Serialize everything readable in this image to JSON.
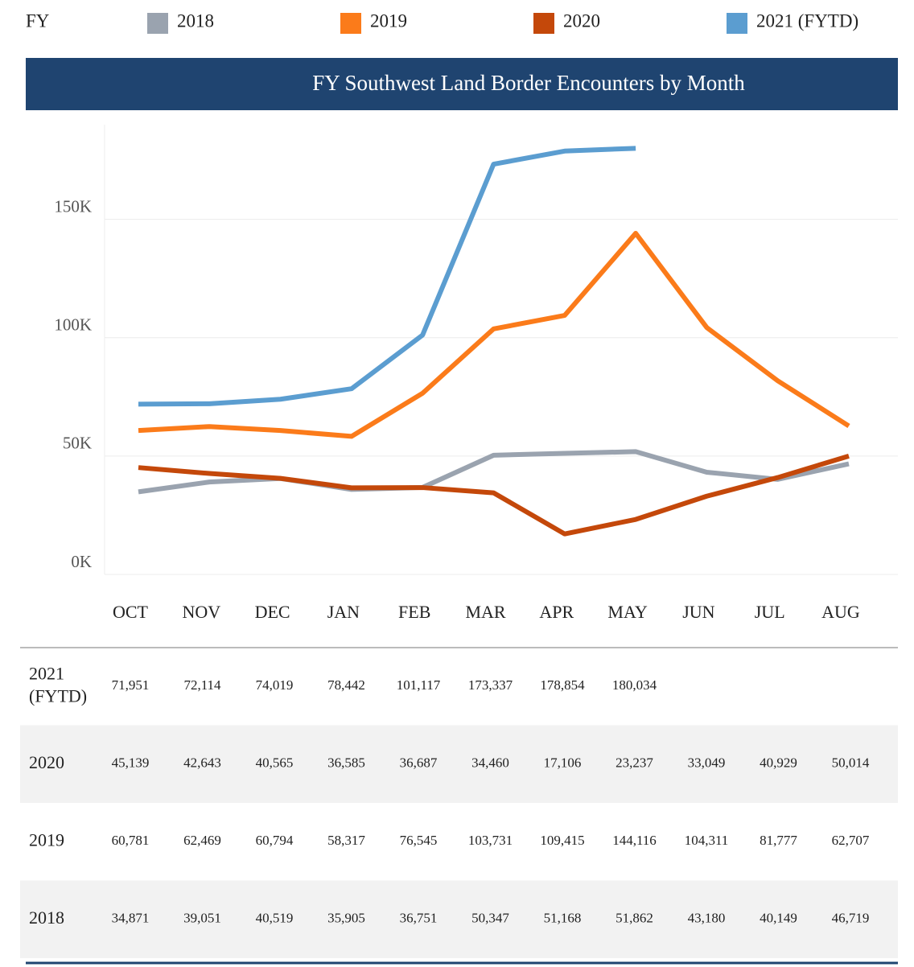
{
  "chart_data": {
    "type": "line",
    "title": "FY Southwest Land Border Encounters by Month",
    "legend_title": "FY",
    "categories": [
      "OCT",
      "NOV",
      "DEC",
      "JAN",
      "FEB",
      "MAR",
      "APR",
      "MAY",
      "JUN",
      "JUL",
      "AUG"
    ],
    "ylim": [
      0,
      190000
    ],
    "yticks": [
      {
        "value": 0,
        "label": "0K"
      },
      {
        "value": 50000,
        "label": "50K"
      },
      {
        "value": 100000,
        "label": "100K"
      },
      {
        "value": 150000,
        "label": "150K"
      }
    ],
    "grid": true,
    "series": [
      {
        "name": "2018",
        "color": "#9aa3af",
        "values": [
          34871,
          39051,
          40519,
          35905,
          36751,
          50347,
          51168,
          51862,
          43180,
          40149,
          46719
        ],
        "value_labels": [
          "34,871",
          "39,051",
          "40,519",
          "35,905",
          "36,751",
          "50,347",
          "51,168",
          "51,862",
          "43,180",
          "40,149",
          "46,719"
        ]
      },
      {
        "name": "2019",
        "color": "#fb7b1a",
        "values": [
          60781,
          62469,
          60794,
          58317,
          76545,
          103731,
          109415,
          144116,
          104311,
          81777,
          62707
        ],
        "value_labels": [
          "60,781",
          "62,469",
          "60,794",
          "58,317",
          "76,545",
          "103,731",
          "109,415",
          "144,116",
          "104,311",
          "81,777",
          "62,707"
        ]
      },
      {
        "name": "2020",
        "color": "#c4480a",
        "values": [
          45139,
          42643,
          40565,
          36585,
          36687,
          34460,
          17106,
          23237,
          33049,
          40929,
          50014
        ],
        "value_labels": [
          "45,139",
          "42,643",
          "40,565",
          "36,585",
          "36,687",
          "34,460",
          "17,106",
          "23,237",
          "33,049",
          "40,929",
          "50,014"
        ]
      },
      {
        "name": "2021 (FYTD)",
        "color": "#5b9dd0",
        "values": [
          71951,
          72114,
          74019,
          78442,
          101117,
          173337,
          178854,
          180034,
          null,
          null,
          null
        ],
        "value_labels": [
          "71,951",
          "72,114",
          "74,019",
          "78,442",
          "101,117",
          "173,337",
          "178,854",
          "180,034",
          null,
          null,
          null
        ]
      }
    ]
  }
}
